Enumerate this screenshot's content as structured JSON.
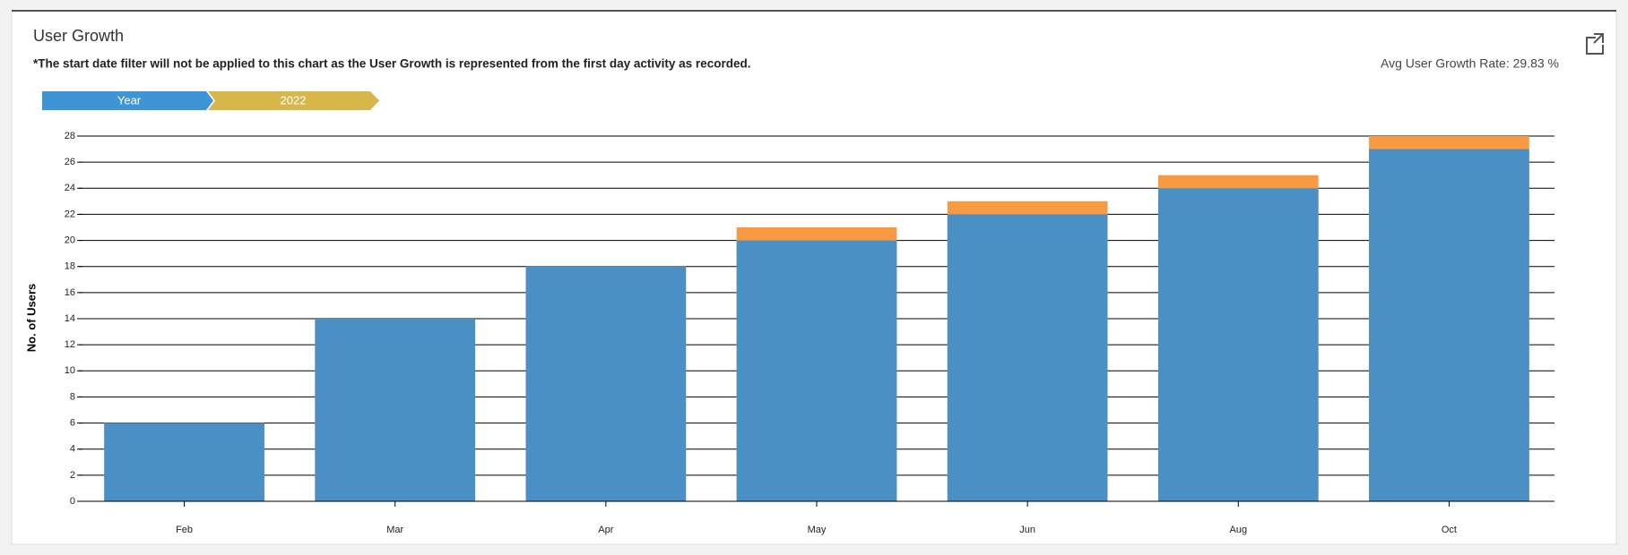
{
  "header": {
    "title": "User Growth",
    "note": "*The start date filter will not be applied to this chart as the User Growth is represented from the first day activity as recorded.",
    "avg_rate": "Avg User Growth Rate: 29.83 %"
  },
  "breadcrumb": [
    "Year",
    "2022"
  ],
  "chart_data": {
    "type": "bar",
    "y_label": "No. of Users",
    "categories": [
      "Feb",
      "Mar",
      "Apr",
      "May",
      "Jun",
      "Aug",
      "Oct"
    ],
    "series": [
      {
        "color": "#f89a42",
        "values": [
          6,
          14,
          18,
          21,
          23,
          25,
          28
        ]
      },
      {
        "color": "#4a90c4",
        "values": [
          6,
          14,
          18,
          20,
          22,
          24,
          27
        ]
      }
    ],
    "ylim": [
      0,
      28
    ],
    "yticks": [
      0,
      2,
      4,
      6,
      8,
      10,
      12,
      14,
      16,
      18,
      20,
      22,
      24,
      26,
      28
    ],
    "grid": true
  }
}
